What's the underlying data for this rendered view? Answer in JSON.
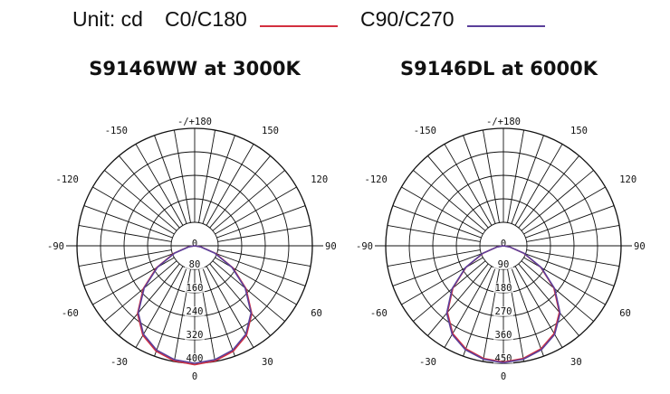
{
  "header": {
    "unit_label": "Unit: cd",
    "legend": [
      {
        "label": "C0/C180",
        "color": "#d32f3f"
      },
      {
        "label": "C90/C270",
        "color": "#5a3f9a"
      }
    ]
  },
  "chart_data": [
    {
      "type": "polar",
      "title": "S9146WW at 3000K",
      "angle_labels": [
        "-/+180",
        "150",
        "120",
        "90",
        "60",
        "30",
        "0",
        "-30",
        "-60",
        "-90",
        "-120",
        "-150"
      ],
      "radial_ticks": [
        "80",
        "160",
        "240",
        "320",
        "400"
      ],
      "r_max": 400,
      "series": [
        {
          "name": "C0/C180",
          "color": "#d32f3f",
          "angles": [
            0,
            10,
            20,
            30,
            40,
            50,
            60,
            70,
            80,
            90,
            -10,
            -20,
            -30,
            -40,
            -50,
            -60,
            -70,
            -80,
            -90
          ],
          "values": [
            405,
            398,
            382,
            352,
            302,
            228,
            150,
            75,
            22,
            0,
            398,
            382,
            352,
            302,
            228,
            150,
            75,
            22,
            0
          ]
        },
        {
          "name": "C90/C270",
          "color": "#5a3f9a",
          "angles": [
            0,
            10,
            20,
            30,
            40,
            50,
            60,
            70,
            80,
            90,
            -10,
            -20,
            -30,
            -40,
            -50,
            -60,
            -70,
            -80,
            -90
          ],
          "values": [
            400,
            394,
            378,
            348,
            298,
            224,
            146,
            72,
            20,
            0,
            394,
            378,
            348,
            298,
            224,
            146,
            72,
            20,
            0
          ]
        }
      ]
    },
    {
      "type": "polar",
      "title": "S9146DL at 6000K",
      "angle_labels": [
        "-/+180",
        "150",
        "120",
        "90",
        "60",
        "30",
        "0",
        "-30",
        "-60",
        "-90",
        "-120",
        "-150"
      ],
      "radial_ticks": [
        "90",
        "180",
        "270",
        "360",
        "450"
      ],
      "r_max": 450,
      "series": [
        {
          "name": "C0/C180",
          "color": "#d32f3f",
          "angles": [
            0,
            10,
            20,
            30,
            40,
            50,
            60,
            70,
            80,
            90,
            -10,
            -20,
            -30,
            -40,
            -50,
            -60,
            -70,
            -80,
            -90
          ],
          "values": [
            445,
            438,
            420,
            388,
            333,
            252,
            165,
            82,
            24,
            0,
            438,
            420,
            388,
            333,
            252,
            165,
            82,
            24,
            0
          ]
        },
        {
          "name": "C90/C270",
          "color": "#5a3f9a",
          "angles": [
            0,
            10,
            20,
            30,
            40,
            50,
            60,
            70,
            80,
            90,
            -10,
            -20,
            -30,
            -40,
            -50,
            -60,
            -70,
            -80,
            -90
          ],
          "values": [
            448,
            441,
            424,
            392,
            337,
            256,
            168,
            84,
            25,
            0,
            441,
            424,
            392,
            337,
            256,
            168,
            84,
            25,
            0
          ]
        }
      ]
    }
  ]
}
